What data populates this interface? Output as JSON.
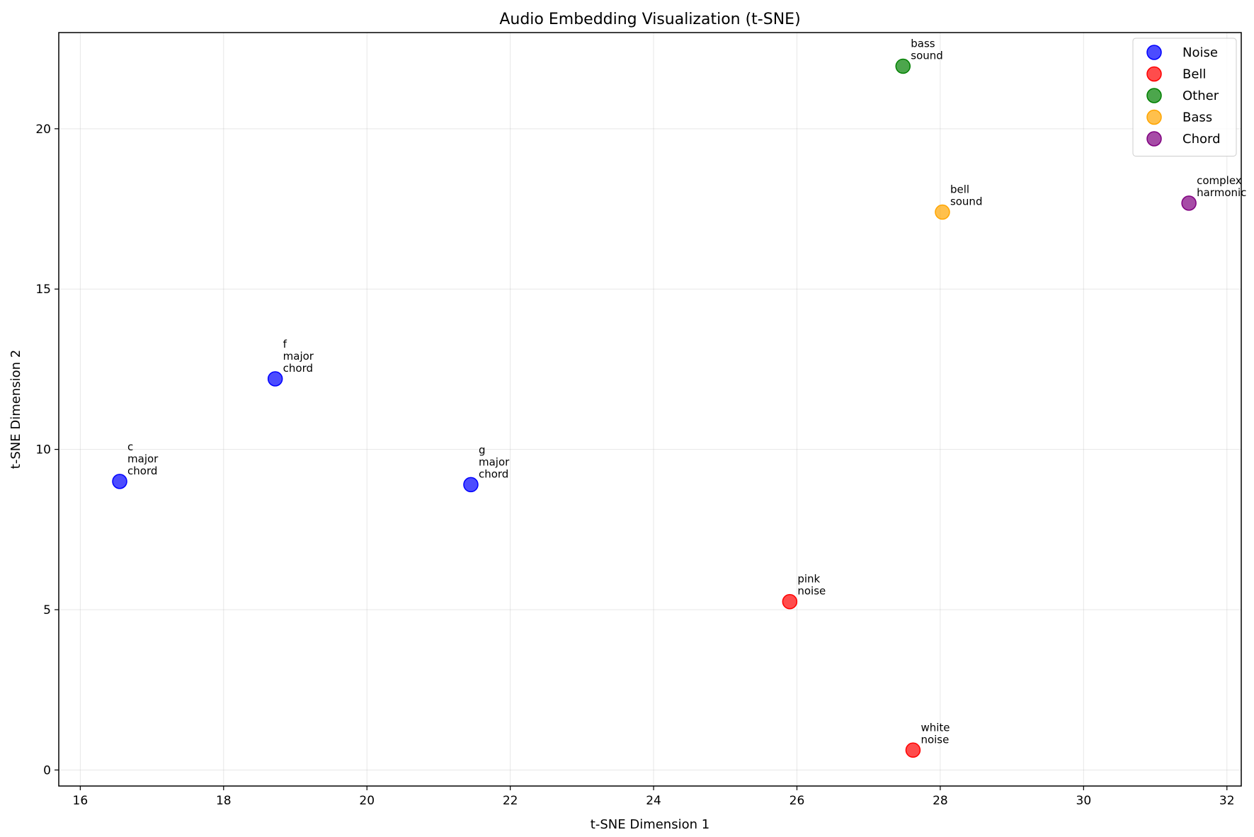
{
  "chart_data": {
    "type": "scatter",
    "title": "Audio Embedding Visualization (t-SNE)",
    "xlabel": "t-SNE Dimension 1",
    "ylabel": "t-SNE Dimension 2",
    "xlim": [
      15.7,
      32.2
    ],
    "ylim": [
      -0.5,
      23.0
    ],
    "xticks": [
      16,
      18,
      20,
      22,
      24,
      26,
      28,
      30,
      32
    ],
    "yticks": [
      0,
      5,
      10,
      15,
      20
    ],
    "grid": true,
    "legend_position": "top-right",
    "series": [
      {
        "name": "Noise",
        "color": "#0000ff",
        "points": [
          {
            "x": 16.55,
            "y": 9.0,
            "label": [
              "c",
              "major",
              "chord"
            ]
          },
          {
            "x": 18.72,
            "y": 12.2,
            "label": [
              "f",
              "major",
              "chord"
            ]
          },
          {
            "x": 21.45,
            "y": 8.9,
            "label": [
              "g",
              "major",
              "chord"
            ]
          }
        ]
      },
      {
        "name": "Bell",
        "color": "#ff0000",
        "points": [
          {
            "x": 25.9,
            "y": 5.25,
            "label": [
              "pink",
              "noise"
            ]
          },
          {
            "x": 27.62,
            "y": 0.62,
            "label": [
              "white",
              "noise"
            ]
          }
        ]
      },
      {
        "name": "Other",
        "color": "#008000",
        "points": [
          {
            "x": 27.48,
            "y": 21.95,
            "label": [
              "bass",
              "sound"
            ]
          }
        ]
      },
      {
        "name": "Bass",
        "color": "#ffa500",
        "points": [
          {
            "x": 28.03,
            "y": 17.4,
            "label": [
              "bell",
              "sound"
            ]
          }
        ]
      },
      {
        "name": "Chord",
        "color": "#800080",
        "points": [
          {
            "x": 31.47,
            "y": 17.68,
            "label": [
              "complex",
              "harmonic"
            ]
          }
        ]
      }
    ]
  }
}
